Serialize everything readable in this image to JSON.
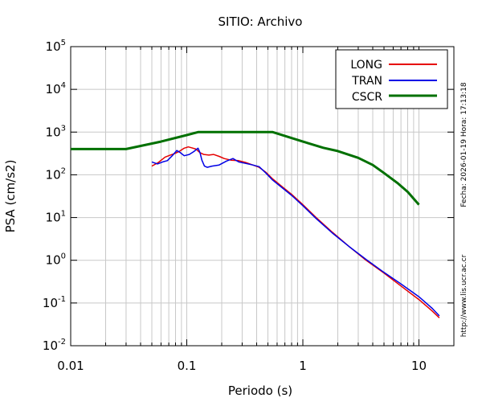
{
  "chart_data": {
    "type": "line",
    "title": "SITIO: Archivo",
    "xlabel": "Periodo (s)",
    "ylabel": "PSA (cm/s2)",
    "xscale": "log",
    "yscale": "log",
    "xlim": [
      0.01,
      20
    ],
    "ylim": [
      0.01,
      100000
    ],
    "grid": true,
    "legend_position": "top-right",
    "x_tick_labels": [
      {
        "value": 0.01,
        "label": "0.01"
      },
      {
        "value": 0.1,
        "label": "0.1"
      },
      {
        "value": 1,
        "label": "1"
      },
      {
        "value": 10,
        "label": "10"
      }
    ],
    "y_tick_labels": [
      {
        "value": 0.01,
        "base": "10",
        "exp": "-2"
      },
      {
        "value": 0.1,
        "base": "10",
        "exp": "-1"
      },
      {
        "value": 1,
        "base": "10",
        "exp": "0"
      },
      {
        "value": 10,
        "base": "10",
        "exp": "1"
      },
      {
        "value": 100,
        "base": "10",
        "exp": "2"
      },
      {
        "value": 1000,
        "base": "10",
        "exp": "3"
      },
      {
        "value": 10000,
        "base": "10",
        "exp": "4"
      },
      {
        "value": 100000,
        "base": "10",
        "exp": "5"
      }
    ],
    "series": [
      {
        "name": "LONG",
        "color": "#e60000",
        "points": [
          [
            0.05,
            160
          ],
          [
            0.057,
            195
          ],
          [
            0.065,
            260
          ],
          [
            0.072,
            290
          ],
          [
            0.08,
            320
          ],
          [
            0.087,
            360
          ],
          [
            0.095,
            420
          ],
          [
            0.103,
            450
          ],
          [
            0.11,
            430
          ],
          [
            0.12,
            400
          ],
          [
            0.13,
            330
          ],
          [
            0.14,
            300
          ],
          [
            0.155,
            290
          ],
          [
            0.17,
            300
          ],
          [
            0.19,
            270
          ],
          [
            0.21,
            240
          ],
          [
            0.24,
            220
          ],
          [
            0.28,
            215
          ],
          [
            0.32,
            195
          ],
          [
            0.37,
            170
          ],
          [
            0.42,
            150
          ],
          [
            0.48,
            115
          ],
          [
            0.55,
            80
          ],
          [
            0.65,
            55
          ],
          [
            0.8,
            35
          ],
          [
            1,
            20
          ],
          [
            1.3,
            10
          ],
          [
            1.8,
            4.5
          ],
          [
            2.5,
            2.1
          ],
          [
            3.5,
            1.0
          ],
          [
            5,
            0.5
          ],
          [
            7,
            0.25
          ],
          [
            10,
            0.12
          ],
          [
            13,
            0.065
          ],
          [
            15,
            0.045
          ]
        ]
      },
      {
        "name": "TRAN",
        "color": "#0000e6",
        "points": [
          [
            0.05,
            200
          ],
          [
            0.056,
            180
          ],
          [
            0.062,
            200
          ],
          [
            0.068,
            215
          ],
          [
            0.075,
            280
          ],
          [
            0.082,
            370
          ],
          [
            0.088,
            330
          ],
          [
            0.095,
            280
          ],
          [
            0.105,
            300
          ],
          [
            0.115,
            350
          ],
          [
            0.125,
            420
          ],
          [
            0.13,
            330
          ],
          [
            0.135,
            220
          ],
          [
            0.142,
            160
          ],
          [
            0.15,
            150
          ],
          [
            0.165,
            160
          ],
          [
            0.19,
            170
          ],
          [
            0.22,
            210
          ],
          [
            0.25,
            240
          ],
          [
            0.28,
            200
          ],
          [
            0.32,
            185
          ],
          [
            0.37,
            170
          ],
          [
            0.42,
            155
          ],
          [
            0.48,
            110
          ],
          [
            0.55,
            75
          ],
          [
            0.65,
            52
          ],
          [
            0.8,
            33
          ],
          [
            1,
            19
          ],
          [
            1.3,
            9.5
          ],
          [
            1.8,
            4.3
          ],
          [
            2.5,
            2.1
          ],
          [
            3.5,
            1.05
          ],
          [
            5,
            0.52
          ],
          [
            7,
            0.28
          ],
          [
            10,
            0.14
          ],
          [
            13,
            0.075
          ],
          [
            15,
            0.05
          ]
        ]
      },
      {
        "name": "CSCR",
        "color": "#007000",
        "points": [
          [
            0.01,
            400
          ],
          [
            0.03,
            400
          ],
          [
            0.06,
            600
          ],
          [
            0.1,
            850
          ],
          [
            0.125,
            1000
          ],
          [
            0.55,
            1000
          ],
          [
            1,
            600
          ],
          [
            1.5,
            430
          ],
          [
            2,
            360
          ],
          [
            3,
            250
          ],
          [
            4,
            170
          ],
          [
            5,
            110
          ],
          [
            6.5,
            65
          ],
          [
            8,
            40
          ],
          [
            10,
            20
          ]
        ]
      }
    ]
  },
  "side_text": {
    "timestamp": "Fecha: 2026-01-19  Hora: 17:13:18",
    "url": "http://www.lis.ucr.ac.cr"
  }
}
